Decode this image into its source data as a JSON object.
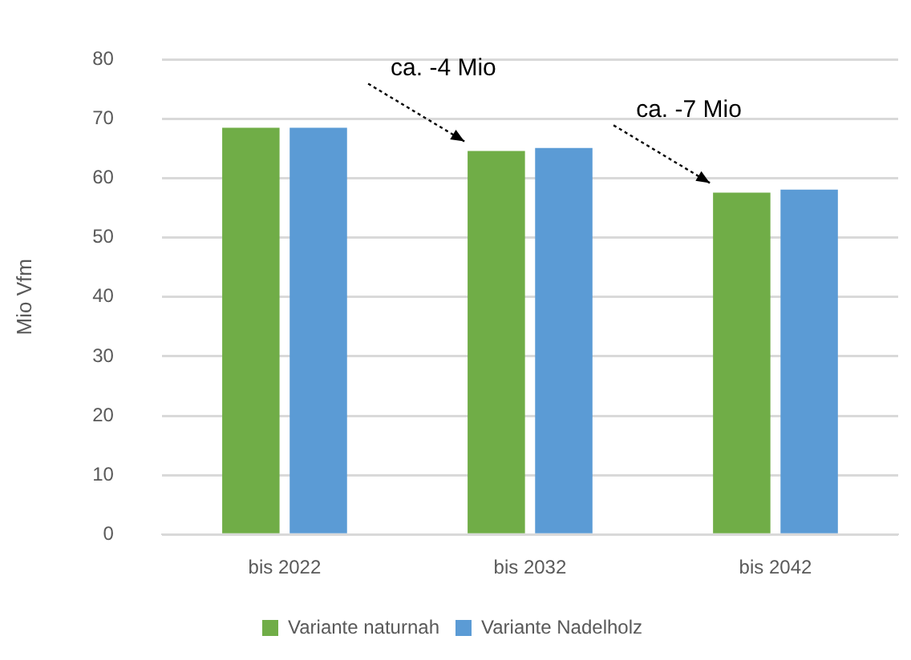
{
  "chart_data": {
    "type": "bar",
    "ylabel": "Mio Vfm",
    "categories": [
      "bis 2022",
      "bis 2032",
      "bis 2042"
    ],
    "series": [
      {
        "name": "Variante naturnah",
        "color": "#70ad47",
        "values": [
          68.5,
          64.6,
          57.6
        ]
      },
      {
        "name": "Variante Nadelholz",
        "color": "#5b9bd5",
        "values": [
          68.5,
          65.1,
          58.1
        ]
      }
    ],
    "ylim": [
      0,
      80
    ],
    "yticks": [
      0,
      10,
      20,
      30,
      40,
      50,
      60,
      70,
      80
    ],
    "grid": "y",
    "legend": "bottom",
    "annotations": [
      "ca. -4 Mio",
      "ca. -7 Mio"
    ]
  }
}
